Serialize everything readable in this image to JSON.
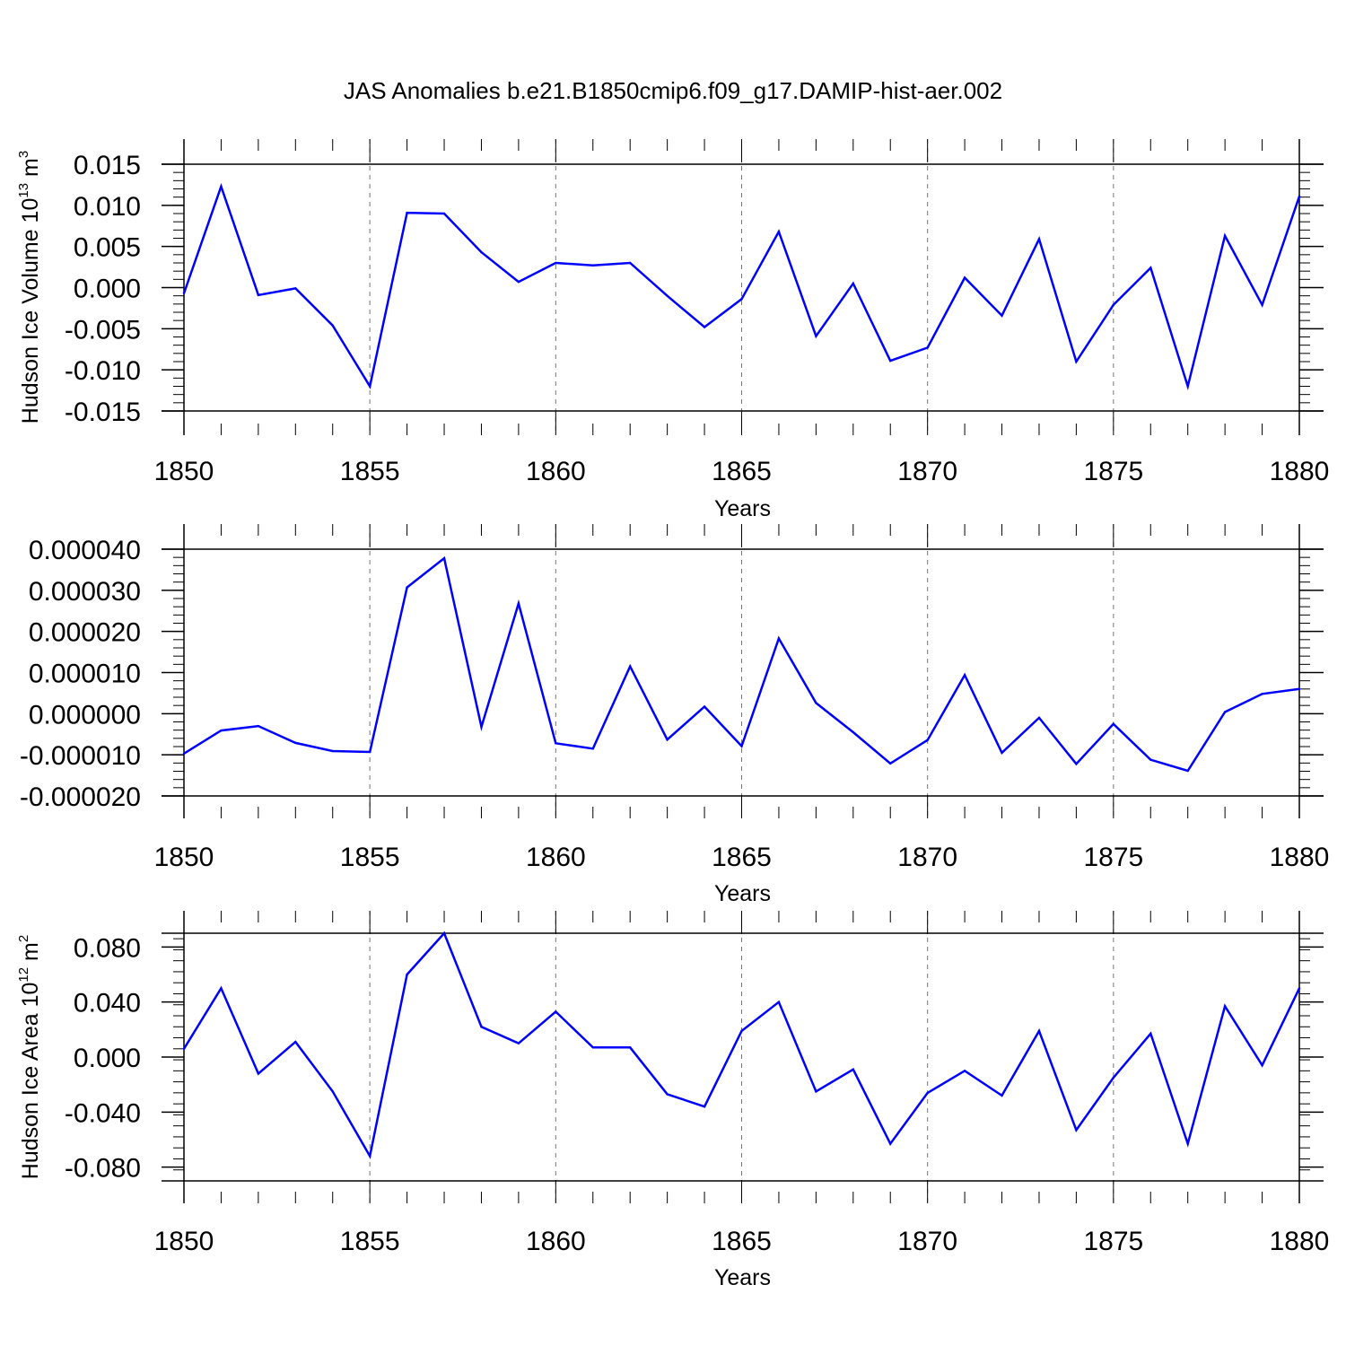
{
  "title": "JAS Anomalies b.e21.B1850cmip6.f09_g17.DAMIP-hist-aer.002",
  "chart_data": [
    {
      "type": "line",
      "name": "volume",
      "title": "JAS Anomalies b.e21.B1850cmip6.f09_g17.DAMIP-hist-aer.002",
      "xlabel": "Years",
      "ylabel": {
        "main": "Hudson Ice Volume 10",
        "exp": "13",
        "unit": "m",
        "unit_exp": "3"
      },
      "xlim": [
        1850,
        1880
      ],
      "ylim": [
        -0.015,
        0.015
      ],
      "yticks": [
        "-0.015",
        "-0.010",
        "-0.005",
        "0.000",
        "0.005",
        "0.010",
        "0.015"
      ],
      "xticks": [
        "1850",
        "1855",
        "1860",
        "1865",
        "1870",
        "1875",
        "1880"
      ],
      "line_color": "#0000ff",
      "x": [
        1850,
        1851,
        1852,
        1853,
        1854,
        1855,
        1856,
        1857,
        1858,
        1859,
        1860,
        1861,
        1862,
        1863,
        1864,
        1865,
        1866,
        1867,
        1868,
        1869,
        1870,
        1871,
        1872,
        1873,
        1874,
        1875,
        1876,
        1877,
        1878,
        1879,
        1880
      ],
      "values": [
        -0.0007,
        0.0123,
        -0.0009,
        -0.0001,
        -0.0046,
        -0.012,
        0.0091,
        0.009,
        0.0043,
        0.0007,
        0.003,
        0.0027,
        0.003,
        -0.001,
        -0.0048,
        -0.0014,
        0.0068,
        -0.0059,
        0.0005,
        -0.0089,
        -0.0073,
        0.0012,
        -0.0034,
        0.0059,
        -0.009,
        -0.0021,
        0.0024,
        -0.012,
        0.0063,
        -0.0021,
        0.0111
      ]
    },
    {
      "type": "line",
      "name": "middle",
      "xlabel": "Years",
      "xlim": [
        1850,
        1880
      ],
      "ylim": [
        -2e-05,
        4e-05
      ],
      "yticks": [
        "-0.000020",
        "-0.000010",
        "0.000000",
        "0.000010",
        "0.000020",
        "0.000030",
        "0.000040"
      ],
      "xticks": [
        "1850",
        "1855",
        "1860",
        "1865",
        "1870",
        "1875",
        "1880"
      ],
      "line_color": "#0000ff",
      "x": [
        1850,
        1851,
        1852,
        1853,
        1854,
        1855,
        1856,
        1857,
        1858,
        1859,
        1860,
        1861,
        1862,
        1863,
        1864,
        1865,
        1866,
        1867,
        1868,
        1869,
        1870,
        1871,
        1872,
        1873,
        1874,
        1875,
        1876,
        1877,
        1878,
        1879,
        1880
      ],
      "values": [
        -9.7e-06,
        -4.1e-06,
        -3e-06,
        -7.1e-06,
        -9.1e-06,
        -9.3e-06,
        3.07e-05,
        3.78e-05,
        -3.2e-06,
        2.68e-05,
        -7.2e-06,
        -8.5e-06,
        1.15e-05,
        -6.3e-06,
        1.7e-06,
        -7.9e-06,
        1.83e-05,
        2.6e-06,
        -4.5e-06,
        -1.21e-05,
        -6.4e-06,
        9.4e-06,
        -9.5e-06,
        -1e-06,
        -1.22e-05,
        -2.5e-06,
        -1.12e-05,
        -1.39e-05,
        4e-07,
        4.8e-06,
        6e-06
      ]
    },
    {
      "type": "line",
      "name": "area",
      "xlabel": "Years",
      "ylabel": {
        "main": "Hudson Ice Area 10",
        "exp": "12",
        "unit": "m",
        "unit_exp": "2"
      },
      "xlim": [
        1850,
        1880
      ],
      "ylim": [
        -0.09,
        0.09
      ],
      "yticks": [
        "-0.080",
        "-0.040",
        "0.000",
        "0.040",
        "0.080"
      ],
      "ytick_values": [
        -0.08,
        -0.04,
        0.0,
        0.04,
        0.08
      ],
      "xticks": [
        "1850",
        "1855",
        "1860",
        "1865",
        "1870",
        "1875",
        "1880"
      ],
      "line_color": "#0000ff",
      "x": [
        1850,
        1851,
        1852,
        1853,
        1854,
        1855,
        1856,
        1857,
        1858,
        1859,
        1860,
        1861,
        1862,
        1863,
        1864,
        1865,
        1866,
        1867,
        1868,
        1869,
        1870,
        1871,
        1872,
        1873,
        1874,
        1875,
        1876,
        1877,
        1878,
        1879,
        1880
      ],
      "values": [
        0.006,
        0.05,
        -0.012,
        0.011,
        -0.025,
        -0.072,
        0.06,
        0.09,
        0.022,
        0.01,
        0.033,
        0.007,
        0.007,
        -0.027,
        -0.036,
        0.019,
        0.04,
        -0.025,
        -0.009,
        -0.063,
        -0.026,
        -0.01,
        -0.028,
        0.019,
        -0.053,
        -0.015,
        0.017,
        -0.063,
        0.037,
        -0.006,
        0.05
      ]
    }
  ]
}
